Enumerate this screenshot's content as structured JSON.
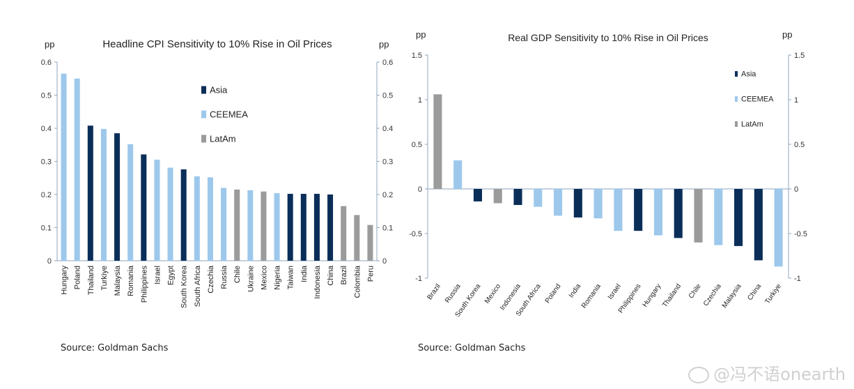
{
  "chart_data": [
    {
      "type": "bar",
      "title": "Headline  CPI Sensitivity  to 10% Rise in Oil Prices",
      "ylabel_left": "pp",
      "ylabel_right": "pp",
      "ylim": [
        0,
        0.6
      ],
      "yticks": [
        "0",
        "0.1",
        "0.2",
        "0.3",
        "0.4",
        "0.5",
        "0.6"
      ],
      "yticks_right": [
        "0",
        "0.1",
        "0.2",
        "0.3",
        "0.4",
        "0.5",
        "0.6"
      ],
      "legend": [
        {
          "name": "Asia",
          "color": "#0b2e59"
        },
        {
          "name": "CEEMEA",
          "color": "#9dc8ec"
        },
        {
          "name": "LatAm",
          "color": "#9b9b9b"
        }
      ],
      "categories": [
        "Hungary",
        "Poland",
        "Thailand",
        "Turkiye",
        "Malaysia",
        "Romania",
        "Philippines",
        "Israel",
        "Egypt",
        "South Korea",
        "South Africa",
        "Czechia",
        "Russia",
        "Chile",
        "Ukraine",
        "Mexico",
        "Nigeria",
        "Taiwan",
        "India",
        "Indonesia",
        "China",
        "Brazil",
        "Colombia",
        "Peru"
      ],
      "values": [
        0.565,
        0.55,
        0.408,
        0.398,
        0.385,
        0.352,
        0.321,
        0.305,
        0.281,
        0.276,
        0.255,
        0.252,
        0.22,
        0.215,
        0.213,
        0.209,
        0.204,
        0.202,
        0.202,
        0.202,
        0.2,
        0.165,
        0.138,
        0.108
      ],
      "groups": [
        "CEEMEA",
        "CEEMEA",
        "Asia",
        "CEEMEA",
        "Asia",
        "CEEMEA",
        "Asia",
        "CEEMEA",
        "CEEMEA",
        "Asia",
        "CEEMEA",
        "CEEMEA",
        "CEEMEA",
        "LatAm",
        "CEEMEA",
        "LatAm",
        "CEEMEA",
        "Asia",
        "Asia",
        "Asia",
        "Asia",
        "LatAm",
        "LatAm",
        "LatAm"
      ],
      "source": "Source: Goldman Sachs"
    },
    {
      "type": "bar",
      "title": "Real GDP Sensitivity to 10% Rise in Oil Prices",
      "ylabel_left": "pp",
      "ylabel_right": "pp",
      "ylim": [
        -1,
        1.5
      ],
      "yticks": [
        "-1",
        "-0.5",
        "0",
        "0.5",
        "1",
        "1.5"
      ],
      "yticks_right": [
        "-1",
        "-0.5",
        "0",
        "0.5",
        "1",
        "1.5"
      ],
      "legend": [
        {
          "name": "Asia",
          "color": "#0b2e59"
        },
        {
          "name": "CEEMEA",
          "color": "#9dc8ec"
        },
        {
          "name": "LatAm",
          "color": "#9b9b9b"
        }
      ],
      "categories": [
        "Brazil",
        "Russia",
        "South Korea",
        "Mexico",
        "Indonesia",
        "South Africa",
        "Poland",
        "India",
        "Romania",
        "Israel",
        "Philippines",
        "Hungary",
        "Thailand",
        "Chile",
        "Czechia",
        "Malaysia",
        "China",
        "Turkiye"
      ],
      "values": [
        1.06,
        0.32,
        -0.14,
        -0.16,
        -0.18,
        -0.2,
        -0.3,
        -0.32,
        -0.33,
        -0.47,
        -0.47,
        -0.52,
        -0.55,
        -0.6,
        -0.63,
        -0.64,
        -0.8,
        -0.87
      ],
      "groups": [
        "LatAm",
        "CEEMEA",
        "Asia",
        "LatAm",
        "Asia",
        "CEEMEA",
        "CEEMEA",
        "Asia",
        "CEEMEA",
        "CEEMEA",
        "Asia",
        "CEEMEA",
        "Asia",
        "LatAm",
        "CEEMEA",
        "Asia",
        "Asia",
        "CEEMEA"
      ],
      "source": "Source: Goldman Sachs"
    }
  ],
  "watermark": "@冯不语onearth"
}
